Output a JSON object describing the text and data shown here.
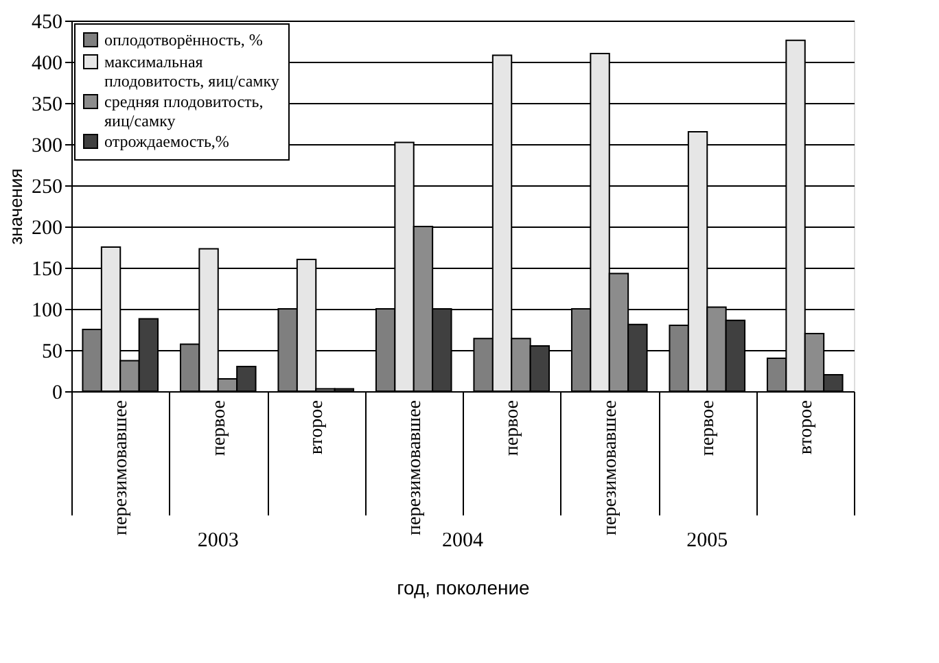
{
  "chart_data": {
    "type": "bar",
    "ylabel": "значения",
    "xlabel": "год, поколение",
    "categories": [
      "перезимовавшее",
      "первое",
      "второе",
      "перезимовавшее",
      "первое",
      "перезимовавшее",
      "первое",
      "второе"
    ],
    "series": [
      {
        "name": "оплодотворённость, %",
        "color": "#7f7f7f",
        "values": [
          75,
          57,
          100,
          100,
          64,
          100,
          80,
          40
        ]
      },
      {
        "name": "максимальная плодовитость, яиц/самку",
        "color": "#e6e6e6",
        "values": [
          175,
          173,
          160,
          302,
          408,
          410,
          315,
          426
        ]
      },
      {
        "name": "средняя плодовитость, яиц/самку",
        "color": "#8c8c8c",
        "values": [
          37,
          15,
          3,
          200,
          64,
          143,
          102,
          70
        ]
      },
      {
        "name": "отрождаемость,%",
        "color": "#404040",
        "values": [
          88,
          30,
          3,
          100,
          55,
          81,
          86,
          20
        ]
      }
    ],
    "annotations": [
      "2003",
      "2004",
      "2005"
    ],
    "ylim": [
      0,
      450
    ],
    "yticks": [
      0,
      50,
      100,
      150,
      200,
      250,
      300,
      350,
      400,
      450
    ],
    "grid": "y",
    "legend": "top left"
  }
}
